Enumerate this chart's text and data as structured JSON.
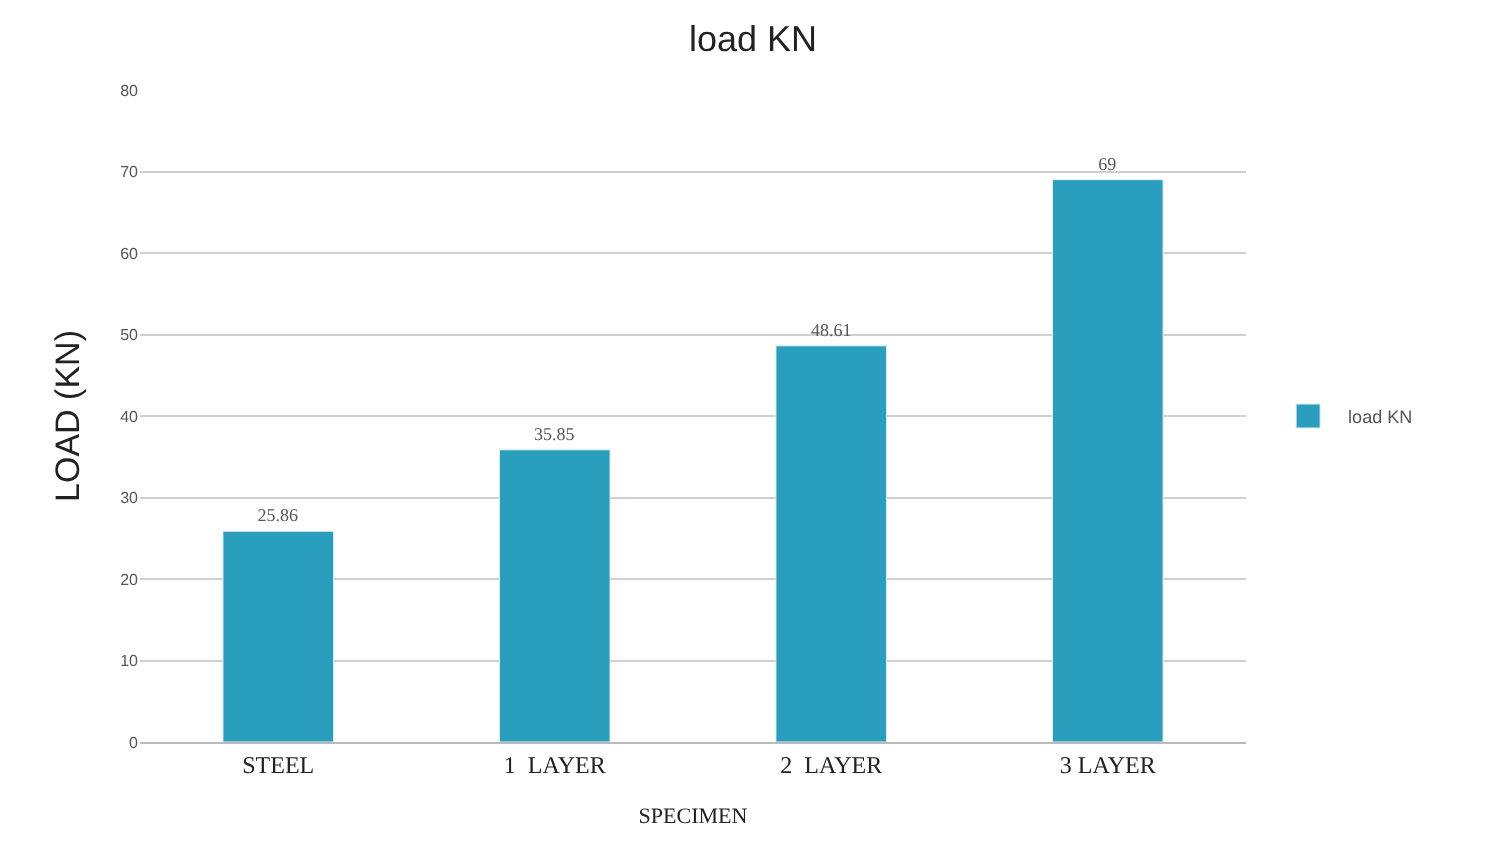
{
  "chart_data": {
    "type": "bar",
    "title": "load KN",
    "xlabel": "SPECIMEN",
    "ylabel": "LOAD (KN)",
    "categories": [
      "STEEL",
      "1  LAYER",
      "2  LAYER",
      "3 LAYER"
    ],
    "series": [
      {
        "name": "load KN",
        "color": "#2a9fbd",
        "values": [
          25.86,
          35.85,
          48.61,
          69
        ]
      }
    ],
    "ylim": [
      0,
      80
    ],
    "yticks": [
      0,
      10,
      20,
      30,
      40,
      50,
      60,
      70,
      80
    ],
    "grid": "y",
    "legend": "right",
    "data_labels": true
  }
}
